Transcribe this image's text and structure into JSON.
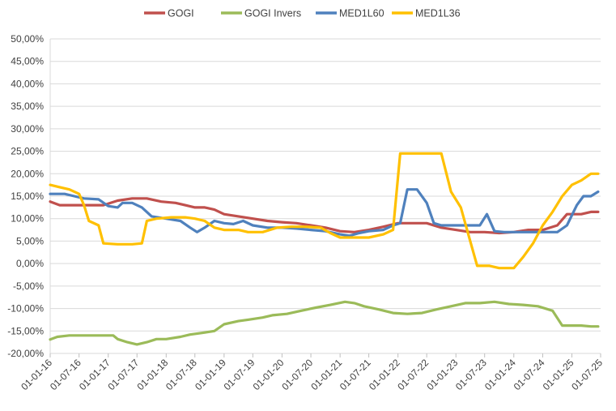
{
  "chart_data": {
    "type": "line",
    "title": "",
    "xlabel": "",
    "ylabel": "",
    "x_axis": {
      "type": "date",
      "range": [
        "2016-01-01",
        "2025-07-01"
      ],
      "tick_labels": [
        "01-01-16",
        "01-07-16",
        "01-01-17",
        "01-07-17",
        "01-01-18",
        "01-07-18",
        "01-01-19",
        "01-07-19",
        "01-01-20",
        "01-07-20",
        "01-01-21",
        "01-07-21",
        "01-01-22",
        "01-07-22",
        "01-01-23",
        "01-07-23",
        "01-01-24",
        "01-07-24",
        "01-01-25",
        "01-07-25"
      ],
      "tick_dates": [
        "2016-01-01",
        "2016-07-01",
        "2017-01-01",
        "2017-07-01",
        "2018-01-01",
        "2018-07-01",
        "2019-01-01",
        "2019-07-01",
        "2020-01-01",
        "2020-07-01",
        "2021-01-01",
        "2021-07-01",
        "2022-01-01",
        "2022-07-01",
        "2023-01-01",
        "2023-07-01",
        "2024-01-01",
        "2024-07-01",
        "2025-01-01",
        "2025-07-01"
      ]
    },
    "y_axis": {
      "ylim": [
        -20,
        50
      ],
      "unit": "%",
      "tick_values": [
        -20,
        -15,
        -10,
        -5,
        0,
        5,
        10,
        15,
        20,
        25,
        30,
        35,
        40,
        45,
        50
      ],
      "tick_labels": [
        "-20,00%",
        "-15,00%",
        "-10,00%",
        "-5,00%",
        "0,00%",
        "5,00%",
        "10,00%",
        "15,00%",
        "20,00%",
        "25,00%",
        "30,00%",
        "35,00%",
        "40,00%",
        "45,00%",
        "50,00%"
      ]
    },
    "grid": "horizontal",
    "legend": {
      "position": "top"
    },
    "series": [
      {
        "name": "GOGI",
        "color": "#C0504D",
        "points": [
          [
            "2016-01-01",
            13.8
          ],
          [
            "2016-03-01",
            13.0
          ],
          [
            "2016-06-01",
            13.0
          ],
          [
            "2016-09-01",
            13.0
          ],
          [
            "2016-12-01",
            13.0
          ],
          [
            "2017-03-01",
            14.0
          ],
          [
            "2017-06-01",
            14.5
          ],
          [
            "2017-09-01",
            14.5
          ],
          [
            "2017-12-01",
            13.8
          ],
          [
            "2018-03-01",
            13.5
          ],
          [
            "2018-05-01",
            13.0
          ],
          [
            "2018-07-01",
            12.5
          ],
          [
            "2018-09-01",
            12.5
          ],
          [
            "2018-11-01",
            12.0
          ],
          [
            "2019-01-01",
            11.0
          ],
          [
            "2019-04-01",
            10.5
          ],
          [
            "2019-07-01",
            10.0
          ],
          [
            "2019-10-01",
            9.5
          ],
          [
            "2020-01-01",
            9.2
          ],
          [
            "2020-04-01",
            9.0
          ],
          [
            "2020-07-01",
            8.5
          ],
          [
            "2020-10-01",
            8.0
          ],
          [
            "2021-01-01",
            7.2
          ],
          [
            "2021-04-01",
            7.0
          ],
          [
            "2021-07-01",
            7.5
          ],
          [
            "2021-10-01",
            8.2
          ],
          [
            "2022-01-01",
            9.0
          ],
          [
            "2022-04-01",
            9.0
          ],
          [
            "2022-07-01",
            9.0
          ],
          [
            "2022-10-01",
            8.0
          ],
          [
            "2023-01-01",
            7.5
          ],
          [
            "2023-04-01",
            7.0
          ],
          [
            "2023-07-01",
            7.0
          ],
          [
            "2023-10-01",
            6.8
          ],
          [
            "2024-01-01",
            7.0
          ],
          [
            "2024-04-01",
            7.5
          ],
          [
            "2024-07-01",
            7.5
          ],
          [
            "2024-10-01",
            8.5
          ],
          [
            "2024-12-01",
            11.0
          ],
          [
            "2025-03-01",
            11.0
          ],
          [
            "2025-05-01",
            11.5
          ],
          [
            "2025-06-15",
            11.5
          ]
        ]
      },
      {
        "name": "GOGI Invers",
        "color": "#9BBB59",
        "points": [
          [
            "2016-01-01",
            -16.9
          ],
          [
            "2016-02-15",
            -16.3
          ],
          [
            "2016-05-01",
            -16.0
          ],
          [
            "2016-08-01",
            -16.0
          ],
          [
            "2016-11-01",
            -16.0
          ],
          [
            "2017-02-01",
            -16.0
          ],
          [
            "2017-03-01",
            -16.8
          ],
          [
            "2017-05-01",
            -17.5
          ],
          [
            "2017-07-01",
            -18.0
          ],
          [
            "2017-09-01",
            -17.5
          ],
          [
            "2017-11-01",
            -16.8
          ],
          [
            "2018-01-01",
            -16.8
          ],
          [
            "2018-04-01",
            -16.3
          ],
          [
            "2018-06-01",
            -15.8
          ],
          [
            "2018-08-01",
            -15.5
          ],
          [
            "2018-11-01",
            -15.0
          ],
          [
            "2019-01-01",
            -13.5
          ],
          [
            "2019-04-01",
            -12.8
          ],
          [
            "2019-06-01",
            -12.5
          ],
          [
            "2019-09-01",
            -12.0
          ],
          [
            "2019-11-01",
            -11.5
          ],
          [
            "2020-02-01",
            -11.2
          ],
          [
            "2020-05-01",
            -10.5
          ],
          [
            "2020-08-01",
            -9.8
          ],
          [
            "2020-11-01",
            -9.2
          ],
          [
            "2021-02-01",
            -8.5
          ],
          [
            "2021-04-01",
            -8.8
          ],
          [
            "2021-06-01",
            -9.5
          ],
          [
            "2021-09-01",
            -10.2
          ],
          [
            "2021-12-01",
            -11.0
          ],
          [
            "2022-03-01",
            -11.2
          ],
          [
            "2022-06-01",
            -11.0
          ],
          [
            "2022-09-01",
            -10.2
          ],
          [
            "2022-12-01",
            -9.5
          ],
          [
            "2023-03-01",
            -8.8
          ],
          [
            "2023-06-01",
            -8.8
          ],
          [
            "2023-09-01",
            -8.5
          ],
          [
            "2023-12-01",
            -9.0
          ],
          [
            "2024-03-01",
            -9.2
          ],
          [
            "2024-06-01",
            -9.5
          ],
          [
            "2024-09-01",
            -10.5
          ],
          [
            "2024-11-01",
            -13.8
          ],
          [
            "2025-03-01",
            -13.8
          ],
          [
            "2025-05-01",
            -14.0
          ],
          [
            "2025-06-15",
            -14.0
          ]
        ]
      },
      {
        "name": "MED1L60",
        "color": "#4F81BD",
        "points": [
          [
            "2016-01-01",
            15.5
          ],
          [
            "2016-04-01",
            15.5
          ],
          [
            "2016-06-01",
            15.0
          ],
          [
            "2016-08-01",
            14.5
          ],
          [
            "2016-11-01",
            14.3
          ],
          [
            "2017-01-01",
            12.8
          ],
          [
            "2017-03-01",
            12.5
          ],
          [
            "2017-04-01",
            13.5
          ],
          [
            "2017-06-01",
            13.5
          ],
          [
            "2017-08-01",
            12.5
          ],
          [
            "2017-10-01",
            10.5
          ],
          [
            "2018-01-01",
            10.0
          ],
          [
            "2018-04-01",
            9.5
          ],
          [
            "2018-06-01",
            8.0
          ],
          [
            "2018-07-15",
            7.0
          ],
          [
            "2018-09-01",
            8.0
          ],
          [
            "2018-11-01",
            9.5
          ],
          [
            "2019-01-01",
            9.0
          ],
          [
            "2019-03-01",
            8.8
          ],
          [
            "2019-05-01",
            9.5
          ],
          [
            "2019-07-01",
            8.5
          ],
          [
            "2019-10-01",
            8.0
          ],
          [
            "2020-01-01",
            8.0
          ],
          [
            "2020-04-01",
            7.8
          ],
          [
            "2020-07-01",
            7.5
          ],
          [
            "2020-10-01",
            7.2
          ],
          [
            "2021-01-01",
            6.5
          ],
          [
            "2021-03-01",
            6.2
          ],
          [
            "2021-05-01",
            6.8
          ],
          [
            "2021-07-01",
            7.2
          ],
          [
            "2021-10-01",
            7.5
          ],
          [
            "2021-12-01",
            8.5
          ],
          [
            "2022-01-15",
            9.0
          ],
          [
            "2022-03-01",
            16.5
          ],
          [
            "2022-05-01",
            16.5
          ],
          [
            "2022-07-01",
            13.5
          ],
          [
            "2022-08-15",
            9.0
          ],
          [
            "2022-10-01",
            8.5
          ],
          [
            "2023-01-01",
            8.5
          ],
          [
            "2023-04-01",
            8.5
          ],
          [
            "2023-06-01",
            8.5
          ],
          [
            "2023-07-15",
            11.0
          ],
          [
            "2023-09-01",
            7.2
          ],
          [
            "2023-11-01",
            7.0
          ],
          [
            "2024-02-01",
            7.0
          ],
          [
            "2024-05-01",
            7.0
          ],
          [
            "2024-08-01",
            7.0
          ],
          [
            "2024-10-01",
            7.0
          ],
          [
            "2024-12-01",
            8.5
          ],
          [
            "2025-02-01",
            13.0
          ],
          [
            "2025-03-15",
            15.0
          ],
          [
            "2025-05-01",
            15.0
          ],
          [
            "2025-06-15",
            16.0
          ]
        ]
      },
      {
        "name": "MED1L36",
        "color": "#FFC000",
        "points": [
          [
            "2016-01-01",
            17.5
          ],
          [
            "2016-03-01",
            17.0
          ],
          [
            "2016-05-01",
            16.5
          ],
          [
            "2016-07-01",
            15.5
          ],
          [
            "2016-08-01",
            13.0
          ],
          [
            "2016-09-01",
            9.5
          ],
          [
            "2016-11-01",
            8.5
          ],
          [
            "2016-12-01",
            4.5
          ],
          [
            "2017-03-01",
            4.3
          ],
          [
            "2017-06-01",
            4.3
          ],
          [
            "2017-08-01",
            4.5
          ],
          [
            "2017-09-01",
            9.5
          ],
          [
            "2017-11-01",
            10.0
          ],
          [
            "2018-02-01",
            10.3
          ],
          [
            "2018-05-01",
            10.3
          ],
          [
            "2018-07-01",
            10.0
          ],
          [
            "2018-09-01",
            9.5
          ],
          [
            "2018-11-01",
            8.0
          ],
          [
            "2019-01-01",
            7.5
          ],
          [
            "2019-04-01",
            7.5
          ],
          [
            "2019-06-01",
            7.0
          ],
          [
            "2019-09-01",
            7.0
          ],
          [
            "2019-12-01",
            8.0
          ],
          [
            "2020-03-01",
            8.2
          ],
          [
            "2020-06-01",
            8.2
          ],
          [
            "2020-09-01",
            8.0
          ],
          [
            "2020-11-01",
            6.8
          ],
          [
            "2021-01-01",
            5.8
          ],
          [
            "2021-04-01",
            5.8
          ],
          [
            "2021-07-01",
            5.8
          ],
          [
            "2021-10-01",
            6.5
          ],
          [
            "2021-12-01",
            7.5
          ],
          [
            "2022-01-15",
            24.5
          ],
          [
            "2022-04-01",
            24.5
          ],
          [
            "2022-07-01",
            24.5
          ],
          [
            "2022-10-01",
            24.5
          ],
          [
            "2022-12-01",
            16.0
          ],
          [
            "2023-02-01",
            12.5
          ],
          [
            "2023-04-01",
            5.0
          ],
          [
            "2023-05-15",
            -0.5
          ],
          [
            "2023-08-01",
            -0.5
          ],
          [
            "2023-10-01",
            -1.0
          ],
          [
            "2024-01-01",
            -1.0
          ],
          [
            "2024-03-01",
            1.5
          ],
          [
            "2024-05-01",
            4.5
          ],
          [
            "2024-07-01",
            8.5
          ],
          [
            "2024-09-01",
            11.5
          ],
          [
            "2024-11-01",
            15.0
          ],
          [
            "2025-01-01",
            17.5
          ],
          [
            "2025-03-01",
            18.5
          ],
          [
            "2025-05-01",
            20.0
          ],
          [
            "2025-06-15",
            20.0
          ]
        ]
      }
    ]
  }
}
